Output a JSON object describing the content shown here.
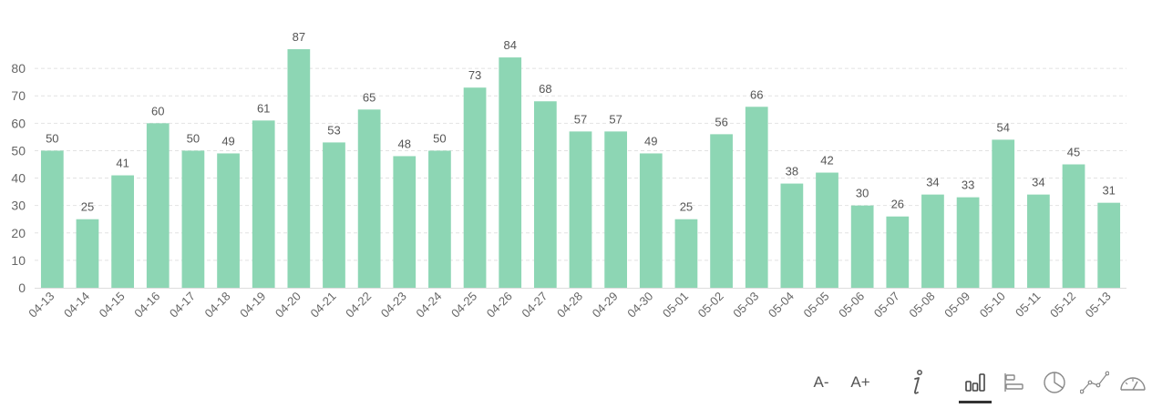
{
  "chart_data": {
    "type": "bar",
    "categories": [
      "04-13",
      "04-14",
      "04-15",
      "04-16",
      "04-17",
      "04-18",
      "04-19",
      "04-20",
      "04-21",
      "04-22",
      "04-23",
      "04-24",
      "04-25",
      "04-26",
      "04-27",
      "04-28",
      "04-29",
      "04-30",
      "05-01",
      "05-02",
      "05-03",
      "05-04",
      "05-05",
      "05-06",
      "05-07",
      "05-08",
      "05-09",
      "05-10",
      "05-11",
      "05-12",
      "05-13"
    ],
    "values": [
      50,
      25,
      41,
      60,
      50,
      49,
      61,
      87,
      53,
      65,
      48,
      50,
      73,
      84,
      68,
      57,
      57,
      49,
      25,
      56,
      66,
      38,
      42,
      30,
      26,
      34,
      33,
      54,
      34,
      45,
      31
    ],
    "ylim": [
      0,
      90
    ],
    "yticks": [
      0,
      10,
      20,
      30,
      40,
      50,
      60,
      70,
      80
    ],
    "grid": true,
    "bar_color": "#8dd6b4",
    "data_labels": true
  },
  "toolbar": {
    "font_decrease_label": "A-",
    "font_increase_label": "A+",
    "icons": [
      "info-icon",
      "bar-chart-icon",
      "horizontal-bar-icon",
      "pie-chart-icon",
      "line-chart-icon",
      "gauge-icon"
    ],
    "active": "bar-chart-icon"
  }
}
